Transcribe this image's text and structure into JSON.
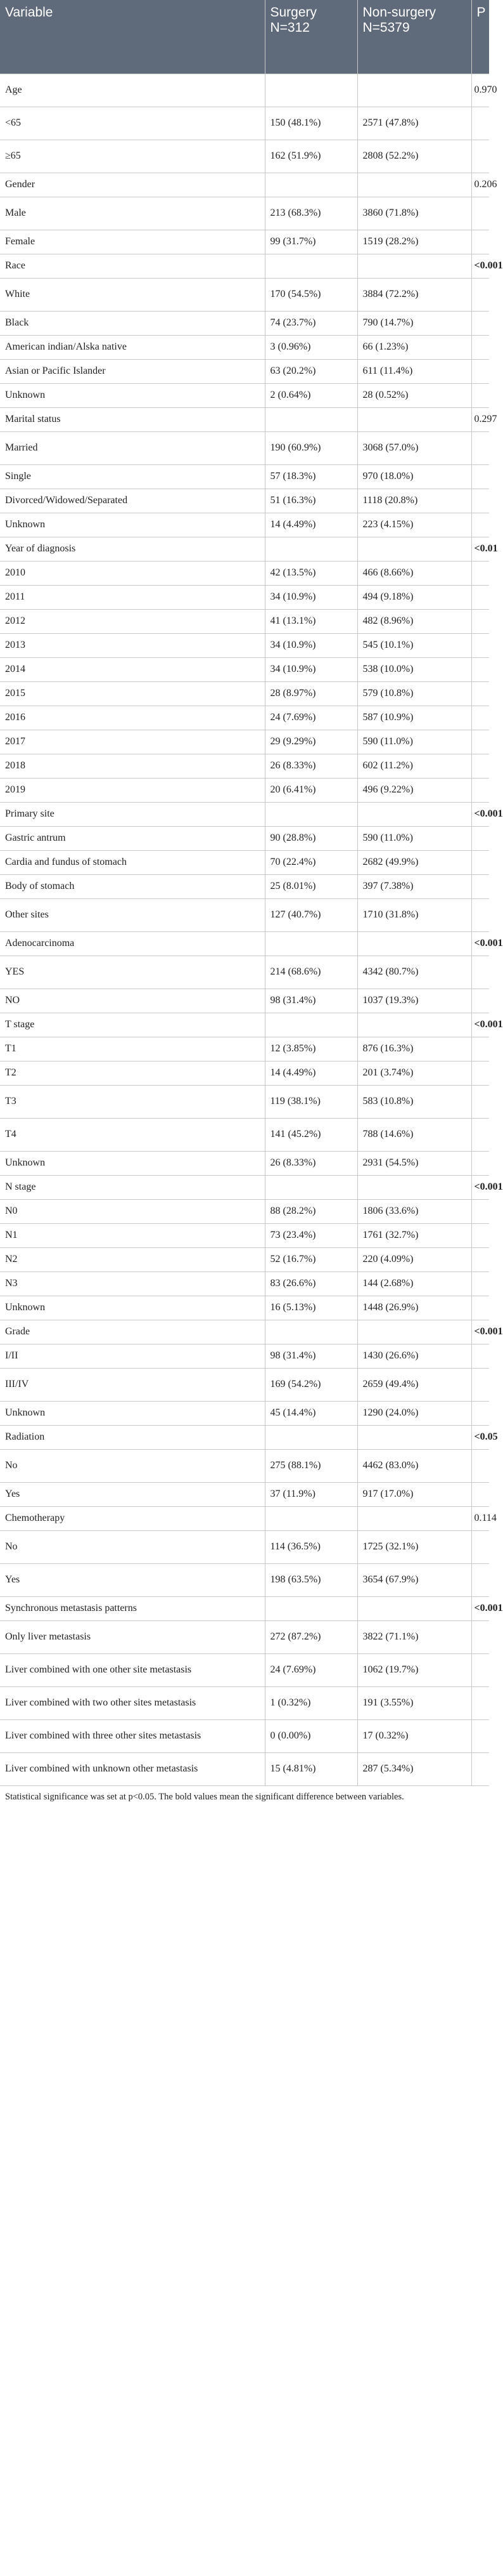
{
  "table": {
    "headers": {
      "variable": "Variable",
      "surgery": "Surgery N=312",
      "nonsurgery": "Non-surgery N=5379",
      "p": "P"
    },
    "rows": [
      {
        "type": "group",
        "label": "Age",
        "surgery": "",
        "nonsurgery": "",
        "p": "0.970",
        "p_bold": false
      },
      {
        "type": "item",
        "label": "<65",
        "surgery": "150 (48.1%)",
        "nonsurgery": "2571 (47.8%)",
        "p": ""
      },
      {
        "type": "item",
        "label": "≥65",
        "surgery": "162 (51.9%)",
        "nonsurgery": "2808 (52.2%)",
        "p": ""
      },
      {
        "type": "group",
        "label": "Gender",
        "surgery": "",
        "nonsurgery": "",
        "p": "0.206",
        "p_bold": false
      },
      {
        "type": "item",
        "label": "Male",
        "surgery": "213 (68.3%)",
        "nonsurgery": "3860 (71.8%)",
        "p": ""
      },
      {
        "type": "item",
        "label": "Female",
        "surgery": "99 (31.7%)",
        "nonsurgery": "1519 (28.2%)",
        "p": ""
      },
      {
        "type": "group",
        "label": "Race",
        "surgery": "",
        "nonsurgery": "",
        "p": "<0.001",
        "p_bold": true
      },
      {
        "type": "item",
        "label": "White",
        "surgery": "170 (54.5%)",
        "nonsurgery": "3884 (72.2%)",
        "p": ""
      },
      {
        "type": "item",
        "label": "Black",
        "surgery": "74 (23.7%)",
        "nonsurgery": "790 (14.7%)",
        "p": ""
      },
      {
        "type": "item",
        "label": "American indian/Alska native",
        "surgery": "3 (0.96%)",
        "nonsurgery": "66 (1.23%)",
        "p": ""
      },
      {
        "type": "item",
        "label": "Asian or Pacific Islander",
        "surgery": "63 (20.2%)",
        "nonsurgery": "611 (11.4%)",
        "p": ""
      },
      {
        "type": "item",
        "label": "Unknown",
        "surgery": "2 (0.64%)",
        "nonsurgery": "28 (0.52%)",
        "p": ""
      },
      {
        "type": "group",
        "label": "Marital status",
        "surgery": "",
        "nonsurgery": "",
        "p": "0.297",
        "p_bold": false
      },
      {
        "type": "item",
        "label": "Married",
        "surgery": "190 (60.9%)",
        "nonsurgery": "3068 (57.0%)",
        "p": ""
      },
      {
        "type": "item",
        "label": "Single",
        "surgery": "57 (18.3%)",
        "nonsurgery": "970 (18.0%)",
        "p": ""
      },
      {
        "type": "item",
        "label": "Divorced/Widowed/Separated",
        "surgery": "51 (16.3%)",
        "nonsurgery": "1118 (20.8%)",
        "p": ""
      },
      {
        "type": "item",
        "label": "Unknown",
        "surgery": "14 (4.49%)",
        "nonsurgery": "223 (4.15%)",
        "p": ""
      },
      {
        "type": "group",
        "label": "Year of diagnosis",
        "surgery": "",
        "nonsurgery": "",
        "p": "<0.01",
        "p_bold": true
      },
      {
        "type": "item",
        "label": "2010",
        "surgery": "42 (13.5%)",
        "nonsurgery": "466 (8.66%)",
        "p": ""
      },
      {
        "type": "item",
        "label": "2011",
        "surgery": "34 (10.9%)",
        "nonsurgery": "494 (9.18%)",
        "p": ""
      },
      {
        "type": "item",
        "label": "2012",
        "surgery": "41 (13.1%)",
        "nonsurgery": "482 (8.96%)",
        "p": ""
      },
      {
        "type": "item",
        "label": "2013",
        "surgery": "34 (10.9%)",
        "nonsurgery": "545 (10.1%)",
        "p": ""
      },
      {
        "type": "item",
        "label": "2014",
        "surgery": "34 (10.9%)",
        "nonsurgery": "538 (10.0%)",
        "p": ""
      },
      {
        "type": "item",
        "label": "2015",
        "surgery": "28 (8.97%)",
        "nonsurgery": "579 (10.8%)",
        "p": ""
      },
      {
        "type": "item",
        "label": "2016",
        "surgery": "24 (7.69%)",
        "nonsurgery": "587 (10.9%)",
        "p": ""
      },
      {
        "type": "item",
        "label": "2017",
        "surgery": "29 (9.29%)",
        "nonsurgery": "590 (11.0%)",
        "p": ""
      },
      {
        "type": "item",
        "label": "2018",
        "surgery": "26 (8.33%)",
        "nonsurgery": "602 (11.2%)",
        "p": ""
      },
      {
        "type": "item",
        "label": "2019",
        "surgery": "20 (6.41%)",
        "nonsurgery": "496 (9.22%)",
        "p": ""
      },
      {
        "type": "group",
        "label": "Primary site",
        "surgery": "",
        "nonsurgery": "",
        "p": "<0.001",
        "p_bold": true
      },
      {
        "type": "item",
        "label": "Gastric antrum",
        "surgery": "90 (28.8%)",
        "nonsurgery": "590 (11.0%)",
        "p": ""
      },
      {
        "type": "item",
        "label": "Cardia and fundus of stomach",
        "surgery": "70 (22.4%)",
        "nonsurgery": "2682 (49.9%)",
        "p": ""
      },
      {
        "type": "item",
        "label": "Body of stomach",
        "surgery": "25 (8.01%)",
        "nonsurgery": "397 (7.38%)",
        "p": ""
      },
      {
        "type": "item",
        "label": "Other sites",
        "surgery": "127 (40.7%)",
        "nonsurgery": "1710 (31.8%)",
        "p": ""
      },
      {
        "type": "group",
        "label": "Adenocarcinoma",
        "surgery": "",
        "nonsurgery": "",
        "p": "<0.001",
        "p_bold": true
      },
      {
        "type": "item",
        "label": "YES",
        "surgery": "214 (68.6%)",
        "nonsurgery": "4342 (80.7%)",
        "p": ""
      },
      {
        "type": "item",
        "label": "NO",
        "surgery": "98 (31.4%)",
        "nonsurgery": "1037 (19.3%)",
        "p": ""
      },
      {
        "type": "group",
        "label": "T stage",
        "surgery": "",
        "nonsurgery": "",
        "p": "<0.001",
        "p_bold": true
      },
      {
        "type": "item",
        "label": "T1",
        "surgery": "12 (3.85%)",
        "nonsurgery": "876 (16.3%)",
        "p": ""
      },
      {
        "type": "item",
        "label": "T2",
        "surgery": "14 (4.49%)",
        "nonsurgery": "201 (3.74%)",
        "p": ""
      },
      {
        "type": "item",
        "label": "T3",
        "surgery": "119 (38.1%)",
        "nonsurgery": "583 (10.8%)",
        "p": ""
      },
      {
        "type": "item",
        "label": "T4",
        "surgery": "141 (45.2%)",
        "nonsurgery": "788 (14.6%)",
        "p": ""
      },
      {
        "type": "item",
        "label": "Unknown",
        "surgery": "26 (8.33%)",
        "nonsurgery": "2931 (54.5%)",
        "p": ""
      },
      {
        "type": "group",
        "label": "N stage",
        "surgery": "",
        "nonsurgery": "",
        "p": "<0.001",
        "p_bold": true
      },
      {
        "type": "item",
        "label": "N0",
        "surgery": "88 (28.2%)",
        "nonsurgery": "1806 (33.6%)",
        "p": ""
      },
      {
        "type": "item",
        "label": "N1",
        "surgery": "73 (23.4%)",
        "nonsurgery": "1761 (32.7%)",
        "p": ""
      },
      {
        "type": "item",
        "label": "N2",
        "surgery": "52 (16.7%)",
        "nonsurgery": "220 (4.09%)",
        "p": ""
      },
      {
        "type": "item",
        "label": "N3",
        "surgery": "83 (26.6%)",
        "nonsurgery": "144 (2.68%)",
        "p": ""
      },
      {
        "type": "item",
        "label": "Unknown",
        "surgery": "16 (5.13%)",
        "nonsurgery": "1448 (26.9%)",
        "p": ""
      },
      {
        "type": "group",
        "label": "Grade",
        "surgery": "",
        "nonsurgery": "",
        "p": "<0.001",
        "p_bold": true
      },
      {
        "type": "item",
        "label": "I/II",
        "surgery": "98 (31.4%)",
        "nonsurgery": "1430 (26.6%)",
        "p": ""
      },
      {
        "type": "item",
        "label": "III/IV",
        "surgery": "169 (54.2%)",
        "nonsurgery": "2659 (49.4%)",
        "p": ""
      },
      {
        "type": "item",
        "label": "Unknown",
        "surgery": "45 (14.4%)",
        "nonsurgery": "1290 (24.0%)",
        "p": ""
      },
      {
        "type": "group",
        "label": "Radiation",
        "surgery": "",
        "nonsurgery": "",
        "p": "<0.05",
        "p_bold": true
      },
      {
        "type": "item",
        "label": "No",
        "surgery": "275 (88.1%)",
        "nonsurgery": "4462 (83.0%)",
        "p": ""
      },
      {
        "type": "item",
        "label": "Yes",
        "surgery": "37 (11.9%)",
        "nonsurgery": "917 (17.0%)",
        "p": ""
      },
      {
        "type": "group",
        "label": "Chemotherapy",
        "surgery": "",
        "nonsurgery": "",
        "p": "0.114",
        "p_bold": false
      },
      {
        "type": "item",
        "label": "No",
        "surgery": "114 (36.5%)",
        "nonsurgery": "1725 (32.1%)",
        "p": ""
      },
      {
        "type": "item",
        "label": "Yes",
        "surgery": "198 (63.5%)",
        "nonsurgery": "3654 (67.9%)",
        "p": ""
      },
      {
        "type": "group",
        "label": "Synchronous metastasis patterns",
        "surgery": "",
        "nonsurgery": "",
        "p": "<0.001",
        "p_bold": true
      },
      {
        "type": "item",
        "label": "Only liver metastasis",
        "surgery": "272 (87.2%)",
        "nonsurgery": "3822 (71.1%)",
        "p": ""
      },
      {
        "type": "item",
        "label": "Liver combined with one other site metastasis",
        "surgery": "24 (7.69%)",
        "nonsurgery": "1062 (19.7%)",
        "p": ""
      },
      {
        "type": "item",
        "label": "Liver combined with two other sites metastasis",
        "surgery": "1 (0.32%)",
        "nonsurgery": "191 (3.55%)",
        "p": ""
      },
      {
        "type": "item",
        "label": "Liver combined with three other sites metastasis",
        "surgery": "0 (0.00%)",
        "nonsurgery": "17 (0.32%)",
        "p": ""
      },
      {
        "type": "item",
        "label": "Liver combined with unknown other metastasis",
        "surgery": "15 (4.81%)",
        "nonsurgery": "287 (5.34%)",
        "p": ""
      }
    ]
  },
  "footnote": "Statistical significance was set at p<0.05. The bold values mean the significant difference between variables."
}
